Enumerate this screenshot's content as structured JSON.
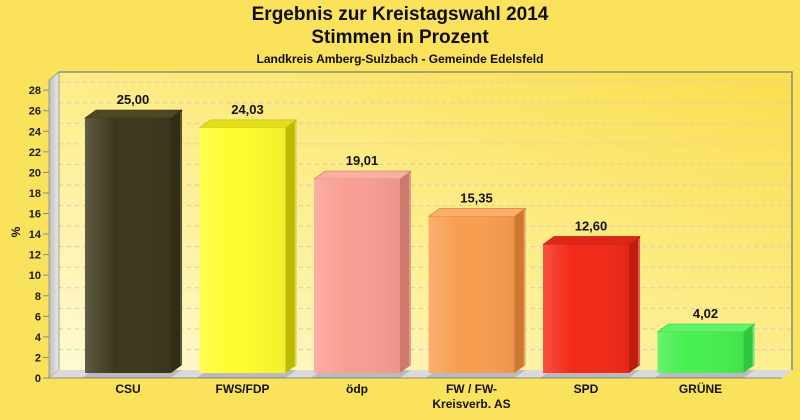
{
  "title": {
    "line1": "Ergebnis zur Kreistagswahl 2014",
    "line2": "Stimmen in Prozent",
    "subtitle": "Landkreis Amberg-Sulzbach - Gemeinde Edelsfeld"
  },
  "chart_data": {
    "type": "bar",
    "style": "3d-column",
    "title": "Ergebnis zur Kreistagswahl 2014",
    "subtitle2": "Stimmen in Prozent",
    "subtitle3": "Landkreis Amberg-Sulzbach - Gemeinde Edelsfeld",
    "xlabel": "",
    "ylabel": "%",
    "ylim": [
      0,
      28
    ],
    "ytick_step": 2,
    "yticks": [
      0,
      2,
      4,
      6,
      8,
      10,
      12,
      14,
      16,
      18,
      20,
      22,
      24,
      26,
      28
    ],
    "grid": "dashed-horizontal",
    "legend": "none",
    "categories": [
      "CSU",
      "FWS/FDP",
      "ödp",
      "FW / FW- Kreisverb. AS",
      "SPD",
      "GRÜNE"
    ],
    "category_lines": [
      [
        "CSU"
      ],
      [
        "FWS/FDP"
      ],
      [
        "ödp"
      ],
      [
        "FW / FW-",
        "Kreisverb. AS"
      ],
      [
        "SPD"
      ],
      [
        "GRÜNE"
      ]
    ],
    "values": [
      25.0,
      24.03,
      19.01,
      15.35,
      12.6,
      4.02
    ],
    "value_labels": [
      "25,00",
      "24,03",
      "19,01",
      "15,35",
      "12,60",
      "4,02"
    ],
    "bar_colors": [
      {
        "front": "#3D381C",
        "top": "#4E4824",
        "side": "#302C15",
        "edge": "#6B6547"
      },
      {
        "front": "#FDFD2E",
        "top": "#E4DF1D",
        "side": "#BDB900",
        "edge": "#DFDA60"
      },
      {
        "front": "#F99E93",
        "top": "#FAAFA3",
        "side": "#CF796C",
        "edge": "#E8A898"
      },
      {
        "front": "#F99E50",
        "top": "#FAB068",
        "side": "#CE7830",
        "edge": "#E8A878"
      },
      {
        "front": "#F32A18",
        "top": "#DF2718",
        "side": "#BF1D10",
        "edge": "#EE7868"
      },
      {
        "front": "#47EF50",
        "top": "#5FF365",
        "side": "#2EC83E",
        "edge": "#8CEC92"
      }
    ],
    "palette": {
      "page_bg": "#FBE25C",
      "plot_grad_light": "#FEFAD2",
      "plot_grad_mid": "#FDEE8E",
      "plot_grad_deep": "#FBDE52",
      "wall_grad_dark": "#BEBEBE",
      "wall_grad_light": "#E9E9E9",
      "floor": "#DADADC",
      "grid_line": "#CFCDBE",
      "panel_border": "#8F8F76",
      "tick_mark": "#8A8A7A",
      "text": "#111111"
    }
  }
}
